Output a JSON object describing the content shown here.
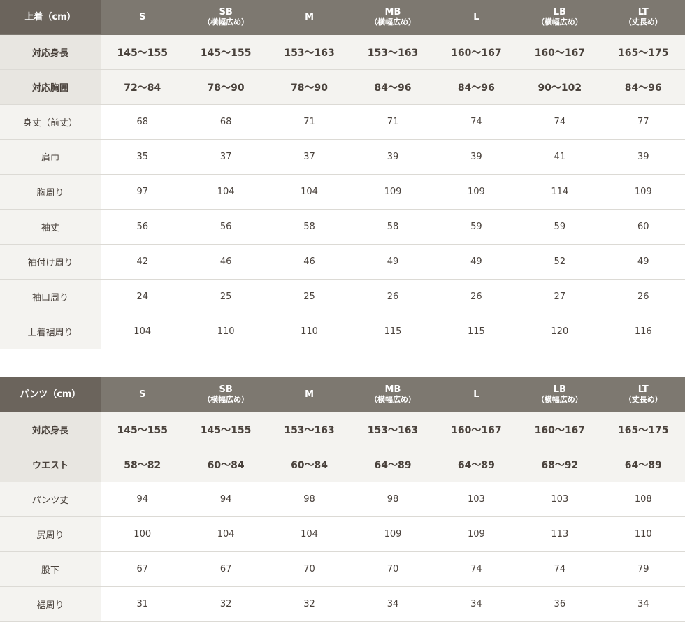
{
  "tables": [
    {
      "title": "上着（cm）",
      "sizes": [
        {
          "name": "S",
          "sub": ""
        },
        {
          "name": "SB",
          "sub": "（横幅広め）"
        },
        {
          "name": "M",
          "sub": ""
        },
        {
          "name": "MB",
          "sub": "（横幅広め）"
        },
        {
          "name": "L",
          "sub": ""
        },
        {
          "name": "LB",
          "sub": "（横幅広め）"
        },
        {
          "name": "LT",
          "sub": "（丈長め）"
        }
      ],
      "rows": [
        {
          "label": "対応身長",
          "key": true,
          "values": [
            "145〜155",
            "145〜155",
            "153〜163",
            "153〜163",
            "160〜167",
            "160〜167",
            "165〜175"
          ]
        },
        {
          "label": "対応胸囲",
          "key": true,
          "values": [
            "72〜84",
            "78〜90",
            "78〜90",
            "84〜96",
            "84〜96",
            "90〜102",
            "84〜96"
          ]
        },
        {
          "label": "身丈（前丈）",
          "values": [
            "68",
            "68",
            "71",
            "71",
            "74",
            "74",
            "77"
          ]
        },
        {
          "label": "肩巾",
          "values": [
            "35",
            "37",
            "37",
            "39",
            "39",
            "41",
            "39"
          ]
        },
        {
          "label": "胸周り",
          "values": [
            "97",
            "104",
            "104",
            "109",
            "109",
            "114",
            "109"
          ]
        },
        {
          "label": "袖丈",
          "values": [
            "56",
            "56",
            "58",
            "58",
            "59",
            "59",
            "60"
          ]
        },
        {
          "label": "袖付け周り",
          "values": [
            "42",
            "46",
            "46",
            "49",
            "49",
            "52",
            "49"
          ]
        },
        {
          "label": "袖口周り",
          "values": [
            "24",
            "25",
            "25",
            "26",
            "26",
            "27",
            "26"
          ]
        },
        {
          "label": "上着裾周り",
          "values": [
            "104",
            "110",
            "110",
            "115",
            "115",
            "120",
            "116"
          ]
        }
      ]
    },
    {
      "title": "パンツ（cm）",
      "sizes": [
        {
          "name": "S",
          "sub": ""
        },
        {
          "name": "SB",
          "sub": "（横幅広め）"
        },
        {
          "name": "M",
          "sub": ""
        },
        {
          "name": "MB",
          "sub": "（横幅広め）"
        },
        {
          "name": "L",
          "sub": ""
        },
        {
          "name": "LB",
          "sub": "（横幅広め）"
        },
        {
          "name": "LT",
          "sub": "（丈長め）"
        }
      ],
      "rows": [
        {
          "label": "対応身長",
          "key": true,
          "values": [
            "145〜155",
            "145〜155",
            "153〜163",
            "153〜163",
            "160〜167",
            "160〜167",
            "165〜175"
          ]
        },
        {
          "label": "ウエスト",
          "key": true,
          "values": [
            "58〜82",
            "60〜84",
            "60〜84",
            "64〜89",
            "64〜89",
            "68〜92",
            "64〜89"
          ]
        },
        {
          "label": "パンツ丈",
          "values": [
            "94",
            "94",
            "98",
            "98",
            "103",
            "103",
            "108"
          ]
        },
        {
          "label": "尻周り",
          "values": [
            "100",
            "104",
            "104",
            "109",
            "109",
            "113",
            "110"
          ]
        },
        {
          "label": "股下",
          "values": [
            "67",
            "67",
            "70",
            "70",
            "74",
            "74",
            "79"
          ]
        },
        {
          "label": "裾周り",
          "values": [
            "31",
            "32",
            "32",
            "34",
            "34",
            "36",
            "34"
          ]
        }
      ]
    }
  ]
}
